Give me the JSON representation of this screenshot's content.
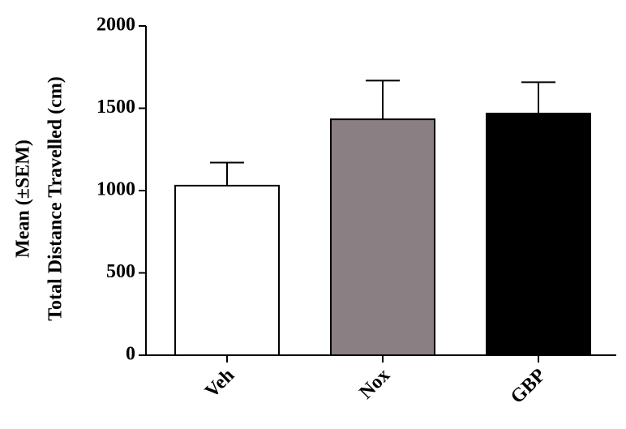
{
  "chart_data": {
    "type": "bar",
    "y_label_lines": [
      "Mean (±SEM)",
      "Total Distance Travelled (cm)"
    ],
    "categories": [
      "Veh",
      "Nox",
      "GBP"
    ],
    "values": [
      1030,
      1433,
      1468
    ],
    "errors": [
      140,
      235,
      190
    ],
    "colors": [
      "#ffffff",
      "#8a7f82",
      "#000000"
    ],
    "ylim": [
      0,
      2000
    ],
    "yticks": [
      0,
      500,
      1000,
      1500,
      2000
    ],
    "grid": false
  }
}
